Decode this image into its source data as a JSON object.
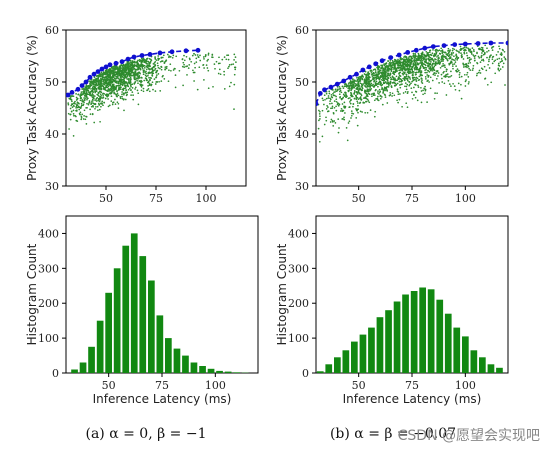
{
  "chart_data": [
    {
      "id": "a-top",
      "type": "scatter",
      "xlabel": "",
      "ylabel": "Proxy Task Accuracy (%)",
      "xlim": [
        30,
        120
      ],
      "ylim": [
        30,
        60
      ],
      "xticks": [
        50,
        75,
        100
      ],
      "yticks": [
        30,
        40,
        50,
        60
      ],
      "scatter_color": "#2e8b2e",
      "frontier_color": "#1010d0",
      "frontier": {
        "x": [
          31,
          33,
          36,
          38,
          40,
          42,
          44,
          46,
          48,
          50,
          52,
          55,
          58,
          61,
          64,
          68,
          72,
          77,
          83,
          90,
          96
        ],
        "y": [
          47.5,
          48.0,
          48.6,
          49.3,
          50.0,
          50.9,
          51.5,
          52.0,
          52.5,
          52.9,
          53.3,
          53.6,
          53.9,
          54.4,
          54.8,
          55.1,
          55.3,
          55.6,
          55.8,
          56.0,
          56.1
        ]
      },
      "cloud": {
        "count": 1600,
        "seed": 11,
        "xmin": 31,
        "xmax": 115,
        "shape": "a"
      }
    },
    {
      "id": "b-top",
      "type": "scatter",
      "xlabel": "",
      "ylabel": "Proxy Task Accuracy (%)",
      "xlim": [
        30,
        120
      ],
      "ylim": [
        30,
        60
      ],
      "xticks": [
        50,
        75,
        100
      ],
      "yticks": [
        30,
        40,
        50,
        60
      ],
      "scatter_color": "#2e8b2e",
      "frontier_color": "#1010d0",
      "frontier": {
        "x": [
          30,
          32,
          34,
          37,
          40,
          43,
          46,
          49,
          52,
          55,
          58,
          61,
          65,
          69,
          73,
          77,
          81,
          85,
          90,
          95,
          100,
          106,
          112,
          120
        ],
        "y": [
          45.8,
          47.8,
          48.5,
          49.0,
          49.6,
          50.2,
          50.9,
          51.5,
          52.3,
          52.9,
          53.5,
          54.1,
          54.7,
          55.2,
          55.7,
          56.1,
          56.5,
          56.8,
          57.0,
          57.2,
          57.3,
          57.4,
          57.5,
          57.5
        ]
      },
      "cloud": {
        "count": 1800,
        "seed": 23,
        "xmin": 31,
        "xmax": 119,
        "shape": "b"
      }
    },
    {
      "id": "a-bottom",
      "type": "bar",
      "xlabel": "Inference Latency (ms)",
      "ylabel": "Histogram Count",
      "xlim": [
        30,
        120
      ],
      "ylim": [
        0,
        450
      ],
      "xticks": [
        50,
        75,
        100
      ],
      "yticks": [
        0,
        100,
        200,
        300,
        400
      ],
      "bar_color": "#118811",
      "bin_start": 32,
      "bin_width": 4,
      "values": [
        10,
        30,
        75,
        150,
        230,
        300,
        365,
        400,
        335,
        265,
        165,
        100,
        70,
        50,
        30,
        20,
        12,
        6,
        4,
        2,
        1
      ]
    },
    {
      "id": "b-bottom",
      "type": "bar",
      "xlabel": "Inference Latency (ms)",
      "ylabel": "Histogram Count",
      "xlim": [
        30,
        120
      ],
      "ylim": [
        0,
        450
      ],
      "xticks": [
        50,
        75,
        100
      ],
      "yticks": [
        0,
        100,
        200,
        300,
        400
      ],
      "bar_color": "#118811",
      "bin_start": 30,
      "bin_width": 4,
      "values": [
        5,
        25,
        45,
        65,
        90,
        110,
        130,
        160,
        180,
        205,
        225,
        235,
        245,
        240,
        210,
        170,
        130,
        105,
        65,
        45,
        25,
        15,
        5
      ]
    }
  ],
  "captions": {
    "a": "(a) α = 0, β = −1",
    "b": "(b) α = β = −0.07"
  },
  "watermark": "CSDN @愿望会实现吧"
}
